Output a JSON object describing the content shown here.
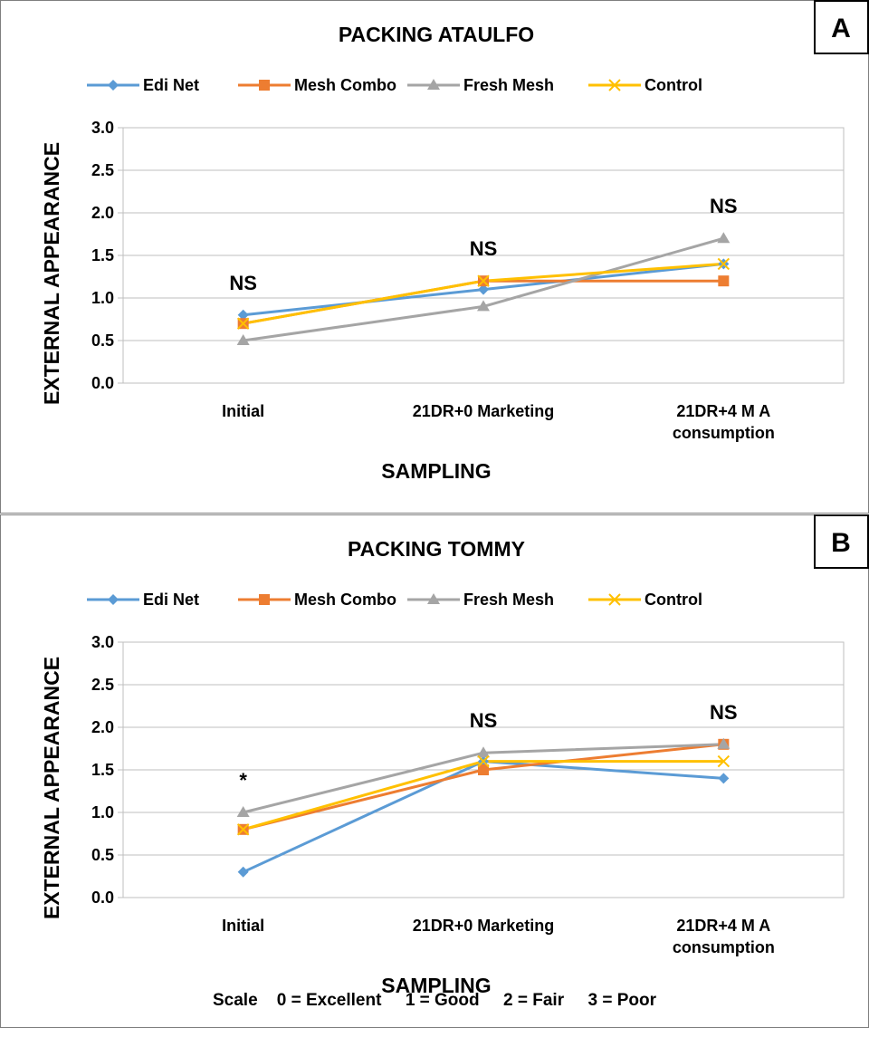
{
  "chart_data": [
    {
      "type": "line",
      "panel": "A",
      "title": "PACKING ATAULFO",
      "xlabel": "SAMPLING",
      "ylabel": "EXTERNAL APPEARANCE",
      "ylim": [
        0,
        3
      ],
      "yticks": [
        "0.0",
        "0.5",
        "1.0",
        "1.5",
        "2.0",
        "2.5",
        "3.0"
      ],
      "grid": true,
      "legend": "top",
      "categories": [
        [
          "Initial"
        ],
        [
          "21DR+0 Marketing"
        ],
        [
          "21DR+4 M  A",
          "consumption"
        ]
      ],
      "annotations": [
        "NS",
        "NS",
        "NS"
      ],
      "series": [
        {
          "name": "Edi Net",
          "color": "#5B9BD5",
          "marker": "diamond",
          "values": [
            0.8,
            1.1,
            1.4
          ]
        },
        {
          "name": "Mesh Combo",
          "color": "#ED7D31",
          "marker": "square",
          "values": [
            0.7,
            1.2,
            1.2
          ]
        },
        {
          "name": "Fresh Mesh",
          "color": "#A5A5A5",
          "marker": "triangle",
          "values": [
            0.5,
            0.9,
            1.7
          ]
        },
        {
          "name": "Control",
          "color": "#FFC000",
          "marker": "x",
          "values": [
            0.7,
            1.2,
            1.4
          ]
        }
      ]
    },
    {
      "type": "line",
      "panel": "B",
      "title": "PACKING TOMMY",
      "xlabel": "SAMPLING",
      "ylabel": "EXTERNAL APPEARANCE",
      "ylim": [
        0,
        3
      ],
      "yticks": [
        "0.0",
        "0.5",
        "1.0",
        "1.5",
        "2.0",
        "2.5",
        "3.0"
      ],
      "grid": true,
      "legend": "top",
      "categories": [
        [
          "Initial"
        ],
        [
          "21DR+0 Marketing"
        ],
        [
          "21DR+4 M  A",
          "consumption"
        ]
      ],
      "annotations": [
        "*",
        "NS",
        "NS"
      ],
      "series": [
        {
          "name": "Edi Net",
          "color": "#5B9BD5",
          "marker": "diamond",
          "values": [
            0.3,
            1.6,
            1.4
          ]
        },
        {
          "name": "Mesh Combo",
          "color": "#ED7D31",
          "marker": "square",
          "values": [
            0.8,
            1.5,
            1.8
          ]
        },
        {
          "name": "Fresh Mesh",
          "color": "#A5A5A5",
          "marker": "triangle",
          "values": [
            1.0,
            1.7,
            1.8
          ]
        },
        {
          "name": "Control",
          "color": "#FFC000",
          "marker": "x",
          "values": [
            0.8,
            1.6,
            1.6
          ]
        }
      ]
    }
  ],
  "scale_note": "Scale    0 = Excellent     1 = Good     2 = Fair     3 = Poor"
}
